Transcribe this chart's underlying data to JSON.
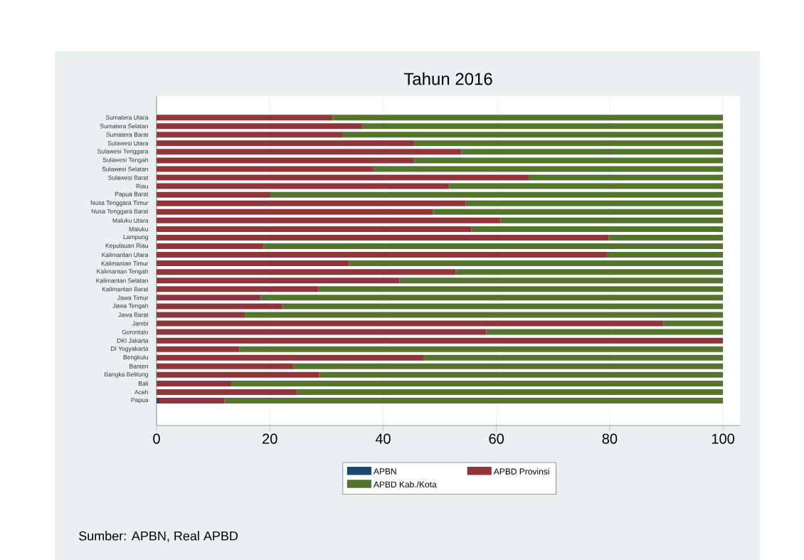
{
  "chart_data": {
    "type": "bar",
    "orientation": "horizontal",
    "stacked": true,
    "title": "Tahun 2016",
    "categories": [
      "Sumatera Utara",
      "Sumatera Selatan",
      "Sumatera Barat",
      "Sulawesi Utara",
      "Sulawesi Tenggara",
      "Sulawesi Tengah",
      "Sulawesi Selatan",
      "Sulawesi Barat",
      "Riau",
      "Papua Barat",
      "Nusa Tenggara Timur",
      "Nusa Tenggara Barat",
      "Maluku Utara",
      "Maluku",
      "Lampung",
      "Kepulauan Riau",
      "Kalimantan Utara",
      "Kalimantan Timur",
      "Kalimantan Tengah",
      "Kalimantan Selatan",
      "Kalimantan Barat",
      "Jawa Timur",
      "Jawa Tengah",
      "Jawa Barat",
      "Jambi",
      "Gorontalo",
      "DKI Jakarta",
      "DI Yogyakarta",
      "Bengkulu",
      "Banten",
      "Bangka Belitung",
      "Bali",
      "Aceh",
      "Papua"
    ],
    "series": [
      {
        "name": "APBN",
        "color": "#1a476f",
        "values": [
          0,
          0,
          0,
          0,
          0,
          0,
          0,
          0,
          0,
          0,
          0,
          0,
          0,
          0,
          0,
          0,
          0,
          0,
          0,
          0,
          0,
          0,
          0,
          0,
          0,
          0,
          0,
          0,
          0,
          0,
          0,
          0,
          0,
          0.5
        ]
      },
      {
        "name": "APBD Provinsi",
        "color": "#90353b",
        "values": [
          31.1,
          36.4,
          32.9,
          45.5,
          53.8,
          45.5,
          38.3,
          65.7,
          51.7,
          20.1,
          54.6,
          48.8,
          60.7,
          55.6,
          79.8,
          18.9,
          79.5,
          34.0,
          52.8,
          42.9,
          28.6,
          18.4,
          22.2,
          15.6,
          89.5,
          58.2,
          100,
          14.6,
          47.2,
          24.2,
          28.7,
          13.2,
          24.8,
          11.5
        ]
      },
      {
        "name": "APBD Kab./Kota",
        "color": "#55752f",
        "values": [
          68.9,
          63.6,
          67.1,
          54.5,
          46.2,
          54.5,
          61.7,
          34.3,
          48.3,
          79.9,
          45.4,
          51.2,
          39.3,
          44.4,
          20.2,
          81.1,
          20.5,
          66.0,
          47.2,
          57.1,
          71.4,
          81.6,
          77.8,
          84.4,
          10.5,
          41.8,
          0,
          85.4,
          52.8,
          75.8,
          71.3,
          86.8,
          75.2,
          88.0
        ]
      }
    ],
    "xlim": [
      0,
      103
    ],
    "xticks": [
      0,
      20,
      40,
      60,
      80,
      100
    ],
    "grid": "x",
    "legend": "bottom",
    "annotations": [
      "Sumber: APBN, Real APBD"
    ]
  }
}
